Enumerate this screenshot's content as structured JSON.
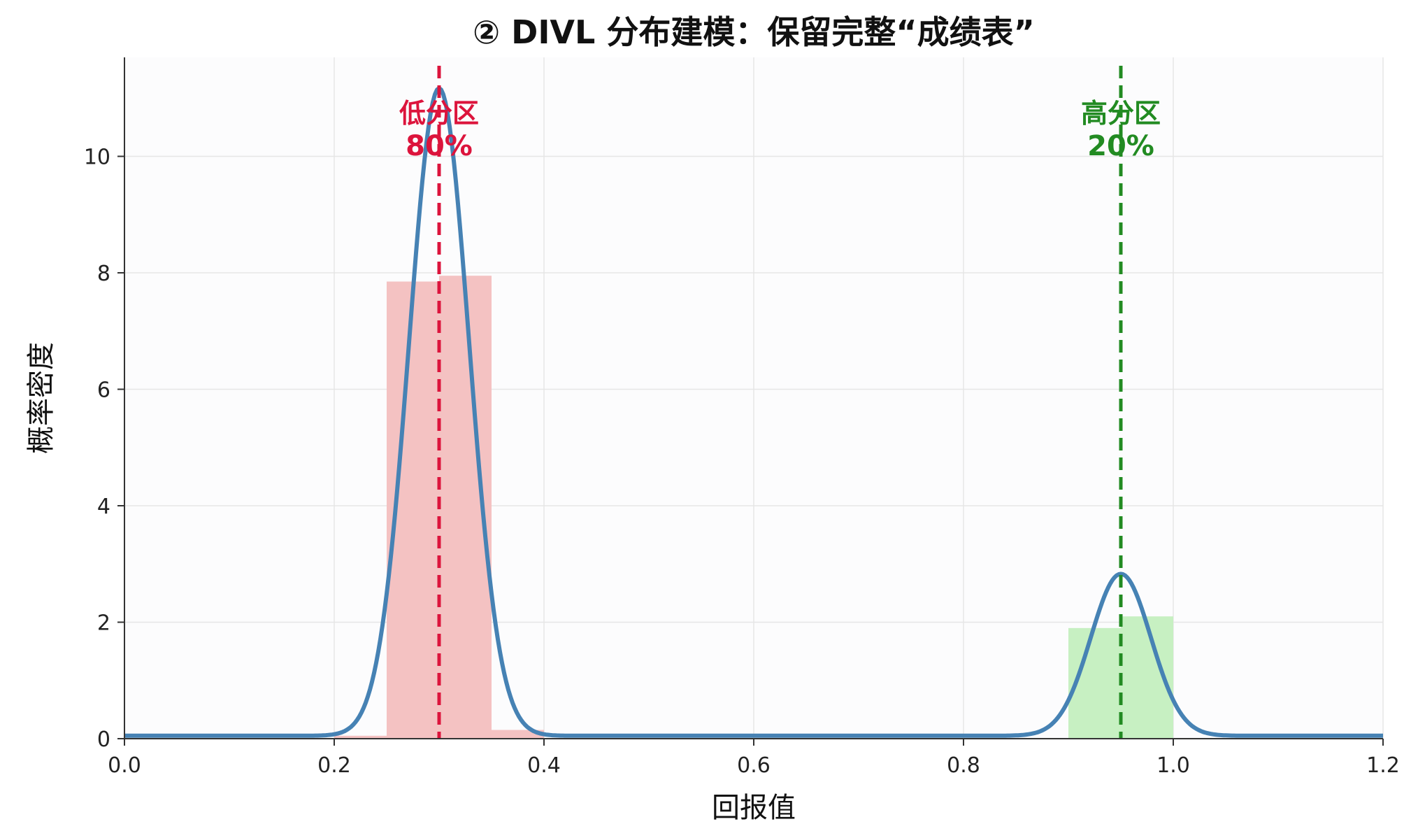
{
  "chart_data": {
    "type": "bar",
    "title": "② DIVL 分布建模：保留完整“成绩表”",
    "xlabel": "回报值",
    "ylabel": "概率密度",
    "xlim": [
      0.0,
      1.2
    ],
    "ylim": [
      0,
      11.7
    ],
    "xticks": [
      "0.0",
      "0.2",
      "0.4",
      "0.6",
      "0.8",
      "1.0",
      "1.2"
    ],
    "yticks": [
      "0",
      "2",
      "4",
      "6",
      "8",
      "10"
    ],
    "grid": true,
    "histogram": {
      "name": "",
      "bins": [
        {
          "x0": 0.2,
          "x1": 0.25,
          "value": 0.05,
          "color": "#f4c2c2"
        },
        {
          "x0": 0.25,
          "x1": 0.3,
          "value": 7.85,
          "color": "#f4c2c2"
        },
        {
          "x0": 0.3,
          "x1": 0.35,
          "value": 7.95,
          "color": "#f4c2c2"
        },
        {
          "x0": 0.35,
          "x1": 0.4,
          "value": 0.15,
          "color": "#f4c2c2"
        },
        {
          "x0": 0.9,
          "x1": 0.95,
          "value": 1.9,
          "color": "#c7f0c2"
        },
        {
          "x0": 0.95,
          "x1": 1.0,
          "value": 2.1,
          "color": "#c7f0c2"
        }
      ]
    },
    "density_curve": {
      "name": "",
      "color": "#4682b4",
      "baseline": 0.05,
      "components": [
        {
          "mean": 0.3,
          "std": 0.0287,
          "weight": 0.8
        },
        {
          "mean": 0.95,
          "std": 0.0287,
          "weight": 0.2
        }
      ]
    },
    "vlines": [
      {
        "x": 0.3,
        "color": "#dc143c",
        "label_line1": "低分区",
        "label_line2": "80%"
      },
      {
        "x": 0.95,
        "color": "#228b22",
        "label_line1": "高分区",
        "label_line2": "20%"
      }
    ]
  }
}
